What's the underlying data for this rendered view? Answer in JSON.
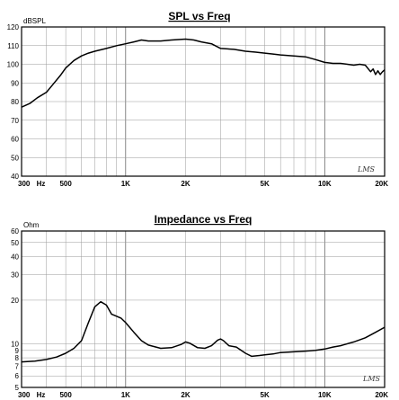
{
  "chart_data": [
    {
      "type": "line",
      "title": "SPL vs Freq",
      "ylabel": "dBSPL",
      "xscale": "log",
      "yscale": "linear",
      "xlim": [
        300,
        20000
      ],
      "ylim": [
        40,
        120
      ],
      "x_tick_labels": [
        "300",
        "Hz",
        "500",
        "1K",
        "2K",
        "5K",
        "10K",
        "20K"
      ],
      "y_ticks": [
        120,
        110,
        100,
        90,
        80,
        70,
        60,
        50,
        40
      ],
      "grid": true,
      "watermark": "LMS",
      "series": [
        {
          "x": [
            300,
            330,
            360,
            400,
            430,
            470,
            500,
            550,
            600,
            650,
            700,
            800,
            900,
            1000,
            1100,
            1200,
            1300,
            1500,
            1700,
            2000,
            2200,
            2400,
            2700,
            3000,
            3500,
            4000,
            4500,
            5000,
            5500,
            6000,
            7000,
            8000,
            9000,
            10000,
            11000,
            12000,
            13000,
            14000,
            15000,
            16000,
            17000,
            17500,
            18000,
            18500,
            19000,
            19500,
            20000
          ],
          "y": [
            77,
            79,
            82,
            85,
            89,
            94,
            98,
            102,
            104.5,
            106,
            107,
            108.5,
            110,
            111,
            112,
            113,
            112.5,
            112.5,
            113,
            113.5,
            113,
            112,
            111,
            108.5,
            108,
            107,
            106.5,
            106,
            105.5,
            105,
            104.5,
            104,
            102.5,
            101,
            100.5,
            100.5,
            100,
            99.5,
            100,
            99.5,
            96,
            97.5,
            94.5,
            96.5,
            94.5,
            96,
            97
          ]
        }
      ]
    },
    {
      "type": "line",
      "title": "Impedance vs Freq",
      "ylabel": "Ohm",
      "xscale": "log",
      "yscale": "log",
      "xlim": [
        300,
        20000
      ],
      "ylim": [
        5,
        60
      ],
      "x_tick_labels": [
        "300",
        "Hz",
        "500",
        "1K",
        "2K",
        "5K",
        "10K",
        "20K"
      ],
      "y_ticks": [
        60,
        50,
        40,
        30,
        20,
        10,
        9,
        8,
        7,
        6,
        5
      ],
      "grid": true,
      "watermark": "LMS",
      "series": [
        {
          "x": [
            300,
            350,
            400,
            450,
            500,
            550,
            600,
            650,
            700,
            750,
            800,
            850,
            900,
            950,
            1000,
            1100,
            1200,
            1300,
            1500,
            1700,
            1900,
            2000,
            2100,
            2300,
            2500,
            2700,
            2900,
            3000,
            3100,
            3300,
            3600,
            4000,
            4300,
            4700,
            5000,
            5500,
            6000,
            7000,
            8000,
            9000,
            10000,
            11000,
            12000,
            14000,
            16000,
            18000,
            20000
          ],
          "y": [
            7.5,
            7.6,
            7.8,
            8.1,
            8.6,
            9.3,
            10.5,
            14,
            18,
            19.5,
            18.5,
            16,
            15.5,
            15,
            14,
            12,
            10.5,
            9.8,
            9.3,
            9.4,
            9.9,
            10.3,
            10.1,
            9.4,
            9.3,
            9.7,
            10.6,
            10.8,
            10.5,
            9.7,
            9.5,
            8.6,
            8.2,
            8.3,
            8.4,
            8.5,
            8.7,
            8.8,
            8.9,
            9.0,
            9.2,
            9.5,
            9.7,
            10.3,
            11.0,
            12.0,
            13.0
          ]
        }
      ]
    }
  ]
}
